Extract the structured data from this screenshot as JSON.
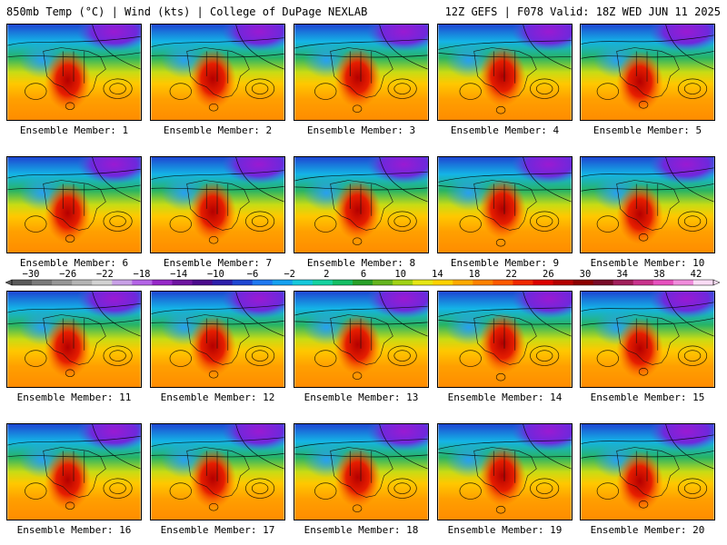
{
  "header": {
    "title_left": "850mb Temp (°C) | Wind (kts) | College of DuPage NEXLAB",
    "title_right": "12Z GEFS | F078 Valid: 18Z WED JUN 11 2025"
  },
  "panels": [
    {
      "label": "Ensemble Member: 1"
    },
    {
      "label": "Ensemble Member: 2"
    },
    {
      "label": "Ensemble Member: 3"
    },
    {
      "label": "Ensemble Member: 4"
    },
    {
      "label": "Ensemble Member: 5"
    },
    {
      "label": "Ensemble Member: 6"
    },
    {
      "label": "Ensemble Member: 7"
    },
    {
      "label": "Ensemble Member: 8"
    },
    {
      "label": "Ensemble Member: 9"
    },
    {
      "label": "Ensemble Member: 10"
    },
    {
      "label": "Ensemble Member: 11"
    },
    {
      "label": "Ensemble Member: 12"
    },
    {
      "label": "Ensemble Member: 13"
    },
    {
      "label": "Ensemble Member: 14"
    },
    {
      "label": "Ensemble Member: 15"
    },
    {
      "label": "Ensemble Member: 16"
    },
    {
      "label": "Ensemble Member: 17"
    },
    {
      "label": "Ensemble Member: 18"
    },
    {
      "label": "Ensemble Member: 19"
    },
    {
      "label": "Ensemble Member: 20"
    }
  ],
  "colorbar": {
    "labels": [
      "−30",
      "−26",
      "−22",
      "−18",
      "−14",
      "−10",
      "−6",
      "−2",
      "2",
      "6",
      "10",
      "14",
      "18",
      "22",
      "26",
      "30",
      "34",
      "38",
      "42"
    ],
    "colors": [
      "#5a5a5a",
      "#7a7a7a",
      "#969696",
      "#b4b4b4",
      "#d2d2d2",
      "#c8a0e6",
      "#b464e6",
      "#9628c8",
      "#6e14a0",
      "#4b0a8c",
      "#2d1eaa",
      "#1e46d2",
      "#1e78f0",
      "#14a0f0",
      "#14c8dc",
      "#14d2a0",
      "#14be64",
      "#28a028",
      "#64b41e",
      "#a0d214",
      "#e6e614",
      "#ffd200",
      "#ffaa00",
      "#ff8200",
      "#ff5a00",
      "#f02800",
      "#dc0000",
      "#b40000",
      "#8c0000",
      "#780a28",
      "#a01e5a",
      "#c8328c",
      "#e650be",
      "#f08cdc",
      "#fadcf5"
    ]
  }
}
